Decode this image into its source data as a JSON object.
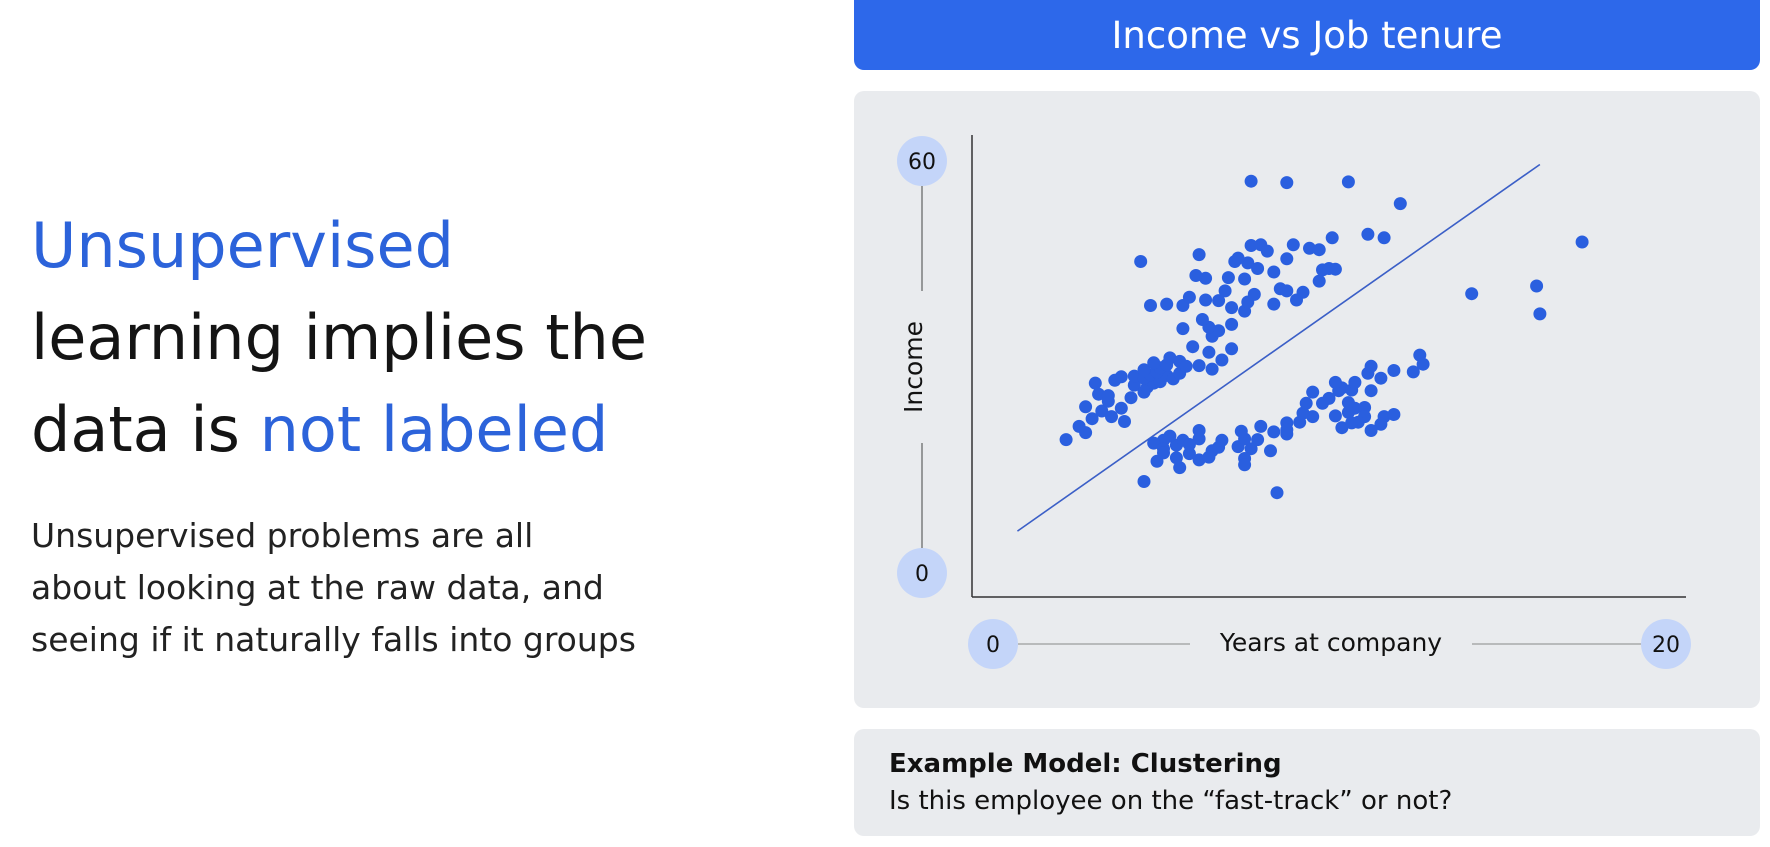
{
  "headline": {
    "line1": "Unsupervised",
    "line2": "learning implies the",
    "line3_prefix": "data is ",
    "line3_accent": "not labeled"
  },
  "body": {
    "line1": "Unsupervised problems are all",
    "line2": "about looking at the raw data, and",
    "line3": "seeing if it naturally falls into groups"
  },
  "chart_data": {
    "type": "scatter",
    "title": "Income vs Job tenure",
    "xlabel": "Years at company",
    "ylabel": "Income",
    "xlim": [
      0,
      20
    ],
    "ylim": [
      0,
      60
    ],
    "x_ticks": [
      "0",
      "20"
    ],
    "y_ticks": [
      "60",
      "0"
    ],
    "points": [
      [
        2.9,
        19.1
      ],
      [
        3.5,
        20.1
      ],
      [
        3.3,
        21.0
      ],
      [
        3.7,
        22.1
      ],
      [
        4.0,
        23.2
      ],
      [
        3.5,
        23.8
      ],
      [
        4.2,
        24.6
      ],
      [
        3.9,
        25.6
      ],
      [
        4.7,
        21.7
      ],
      [
        4.3,
        22.4
      ],
      [
        4.6,
        23.6
      ],
      [
        4.2,
        25.4
      ],
      [
        4.9,
        25.1
      ],
      [
        5.0,
        26.9
      ],
      [
        3.8,
        27.2
      ],
      [
        4.4,
        27.6
      ],
      [
        4.6,
        28.1
      ],
      [
        5.0,
        28.2
      ],
      [
        5.3,
        25.9
      ],
      [
        5.4,
        26.6
      ],
      [
        5.6,
        27.2
      ],
      [
        5.3,
        27.9
      ],
      [
        5.5,
        28.4
      ],
      [
        5.8,
        27.4
      ],
      [
        6.0,
        28.3
      ],
      [
        5.7,
        28.8
      ],
      [
        5.3,
        29.1
      ],
      [
        6.2,
        27.8
      ],
      [
        6.4,
        28.6
      ],
      [
        5.8,
        29.4
      ],
      [
        6.0,
        29.8
      ],
      [
        5.6,
        30.1
      ],
      [
        6.1,
        30.8
      ],
      [
        6.4,
        30.3
      ],
      [
        6.6,
        29.6
      ],
      [
        7.0,
        29.7
      ],
      [
        7.4,
        29.2
      ],
      [
        7.7,
        30.5
      ],
      [
        7.3,
        31.6
      ],
      [
        8.0,
        32.1
      ],
      [
        6.8,
        32.4
      ],
      [
        7.4,
        33.9
      ],
      [
        7.6,
        34.7
      ],
      [
        7.3,
        35.2
      ],
      [
        7.1,
        36.3
      ],
      [
        6.5,
        35.0
      ],
      [
        8.0,
        35.6
      ],
      [
        5.5,
        38.3
      ],
      [
        6.0,
        38.5
      ],
      [
        6.5,
        38.3
      ],
      [
        6.7,
        39.5
      ],
      [
        7.2,
        39.1
      ],
      [
        7.6,
        39.0
      ],
      [
        7.8,
        40.4
      ],
      [
        7.2,
        42.2
      ],
      [
        8.0,
        38.0
      ],
      [
        8.4,
        37.5
      ],
      [
        8.5,
        38.8
      ],
      [
        8.7,
        39.9
      ],
      [
        7.9,
        42.3
      ],
      [
        8.1,
        44.6
      ],
      [
        8.5,
        44.4
      ],
      [
        8.4,
        42.1
      ],
      [
        8.8,
        43.6
      ],
      [
        9.3,
        43.1
      ],
      [
        9.3,
        38.5
      ],
      [
        9.5,
        40.7
      ],
      [
        8.9,
        47.0
      ],
      [
        9.7,
        40.4
      ],
      [
        9.1,
        46.1
      ],
      [
        7.0,
        45.6
      ],
      [
        5.2,
        44.6
      ],
      [
        6.9,
        42.6
      ],
      [
        8.2,
        45.1
      ],
      [
        8.6,
        46.9
      ],
      [
        9.9,
        47.0
      ],
      [
        9.7,
        45.0
      ],
      [
        10.4,
        46.5
      ],
      [
        10.7,
        46.3
      ],
      [
        10.8,
        43.4
      ],
      [
        11.0,
        43.6
      ],
      [
        11.2,
        43.5
      ],
      [
        10.7,
        41.8
      ],
      [
        10.2,
        40.2
      ],
      [
        10.0,
        39.1
      ],
      [
        11.1,
        48.0
      ],
      [
        11.6,
        56.0
      ],
      [
        8.6,
        56.1
      ],
      [
        9.7,
        55.9
      ],
      [
        13.2,
        52.9
      ],
      [
        12.7,
        48.0
      ],
      [
        12.2,
        48.5
      ],
      [
        11.3,
        26.1
      ],
      [
        11.0,
        25.0
      ],
      [
        10.8,
        24.3
      ],
      [
        11.6,
        24.4
      ],
      [
        11.8,
        23.6
      ],
      [
        12.1,
        23.7
      ],
      [
        12.7,
        22.4
      ],
      [
        12.1,
        22.4
      ],
      [
        12.6,
        21.3
      ],
      [
        12.3,
        20.4
      ],
      [
        11.9,
        21.6
      ],
      [
        11.6,
        23.0
      ],
      [
        11.4,
        20.8
      ],
      [
        11.7,
        21.5
      ],
      [
        11.2,
        22.5
      ],
      [
        10.5,
        22.4
      ],
      [
        10.1,
        21.6
      ],
      [
        9.7,
        21.5
      ],
      [
        9.3,
        20.2
      ],
      [
        9.7,
        19.9
      ],
      [
        9.2,
        17.5
      ],
      [
        8.6,
        17.8
      ],
      [
        8.4,
        16.4
      ],
      [
        8.2,
        18.1
      ],
      [
        7.4,
        17.5
      ],
      [
        7.6,
        18.0
      ],
      [
        7.0,
        16.2
      ],
      [
        7.3,
        16.6
      ],
      [
        6.7,
        17.1
      ],
      [
        6.3,
        18.3
      ],
      [
        6.5,
        19.0
      ],
      [
        7.0,
        19.2
      ],
      [
        7.7,
        19.0
      ],
      [
        8.4,
        19.2
      ],
      [
        8.8,
        19.1
      ],
      [
        8.3,
        20.3
      ],
      [
        7.0,
        20.4
      ],
      [
        6.1,
        19.6
      ],
      [
        5.9,
        19.0
      ],
      [
        5.6,
        18.6
      ],
      [
        5.9,
        17.8
      ],
      [
        6.7,
        18.4
      ],
      [
        6.4,
        15.1
      ],
      [
        5.3,
        13.1
      ],
      [
        8.4,
        15.5
      ],
      [
        9.4,
        11.5
      ],
      [
        6.3,
        16.5
      ],
      [
        5.7,
        16.0
      ],
      [
        5.9,
        17.2
      ],
      [
        8.9,
        21.0
      ],
      [
        9.7,
        20.5
      ],
      [
        10.2,
        22.9
      ],
      [
        10.3,
        24.3
      ],
      [
        13.0,
        22.7
      ],
      [
        13.6,
        28.8
      ],
      [
        12.3,
        26.1
      ],
      [
        13.0,
        29.0
      ],
      [
        15.4,
        40.0
      ],
      [
        17.4,
        41.1
      ],
      [
        17.5,
        37.1
      ],
      [
        18.8,
        47.4
      ],
      [
        11.4,
        26.5
      ],
      [
        11.7,
        26.2
      ],
      [
        10.5,
        25.9
      ],
      [
        11.2,
        27.3
      ],
      [
        11.8,
        27.3
      ],
      [
        12.2,
        28.6
      ],
      [
        12.6,
        27.9
      ],
      [
        13.8,
        31.2
      ],
      [
        13.9,
        29.9
      ],
      [
        12.3,
        29.6
      ]
    ],
    "fit_line": {
      "x": [
        1.4,
        17.5
      ],
      "y": [
        6.0,
        58.5
      ]
    },
    "colors": {
      "points": "#2a5fdf",
      "line": "#3b5fc7",
      "title_bar": "#2d68ea",
      "panel": "#e9ebee",
      "tick_circle": "#c4d5f9",
      "headline_accent": "#2c63da"
    }
  },
  "footer": {
    "title": "Example Model: Clustering",
    "subtitle": "Is this employee on the “fast-track” or not?"
  }
}
